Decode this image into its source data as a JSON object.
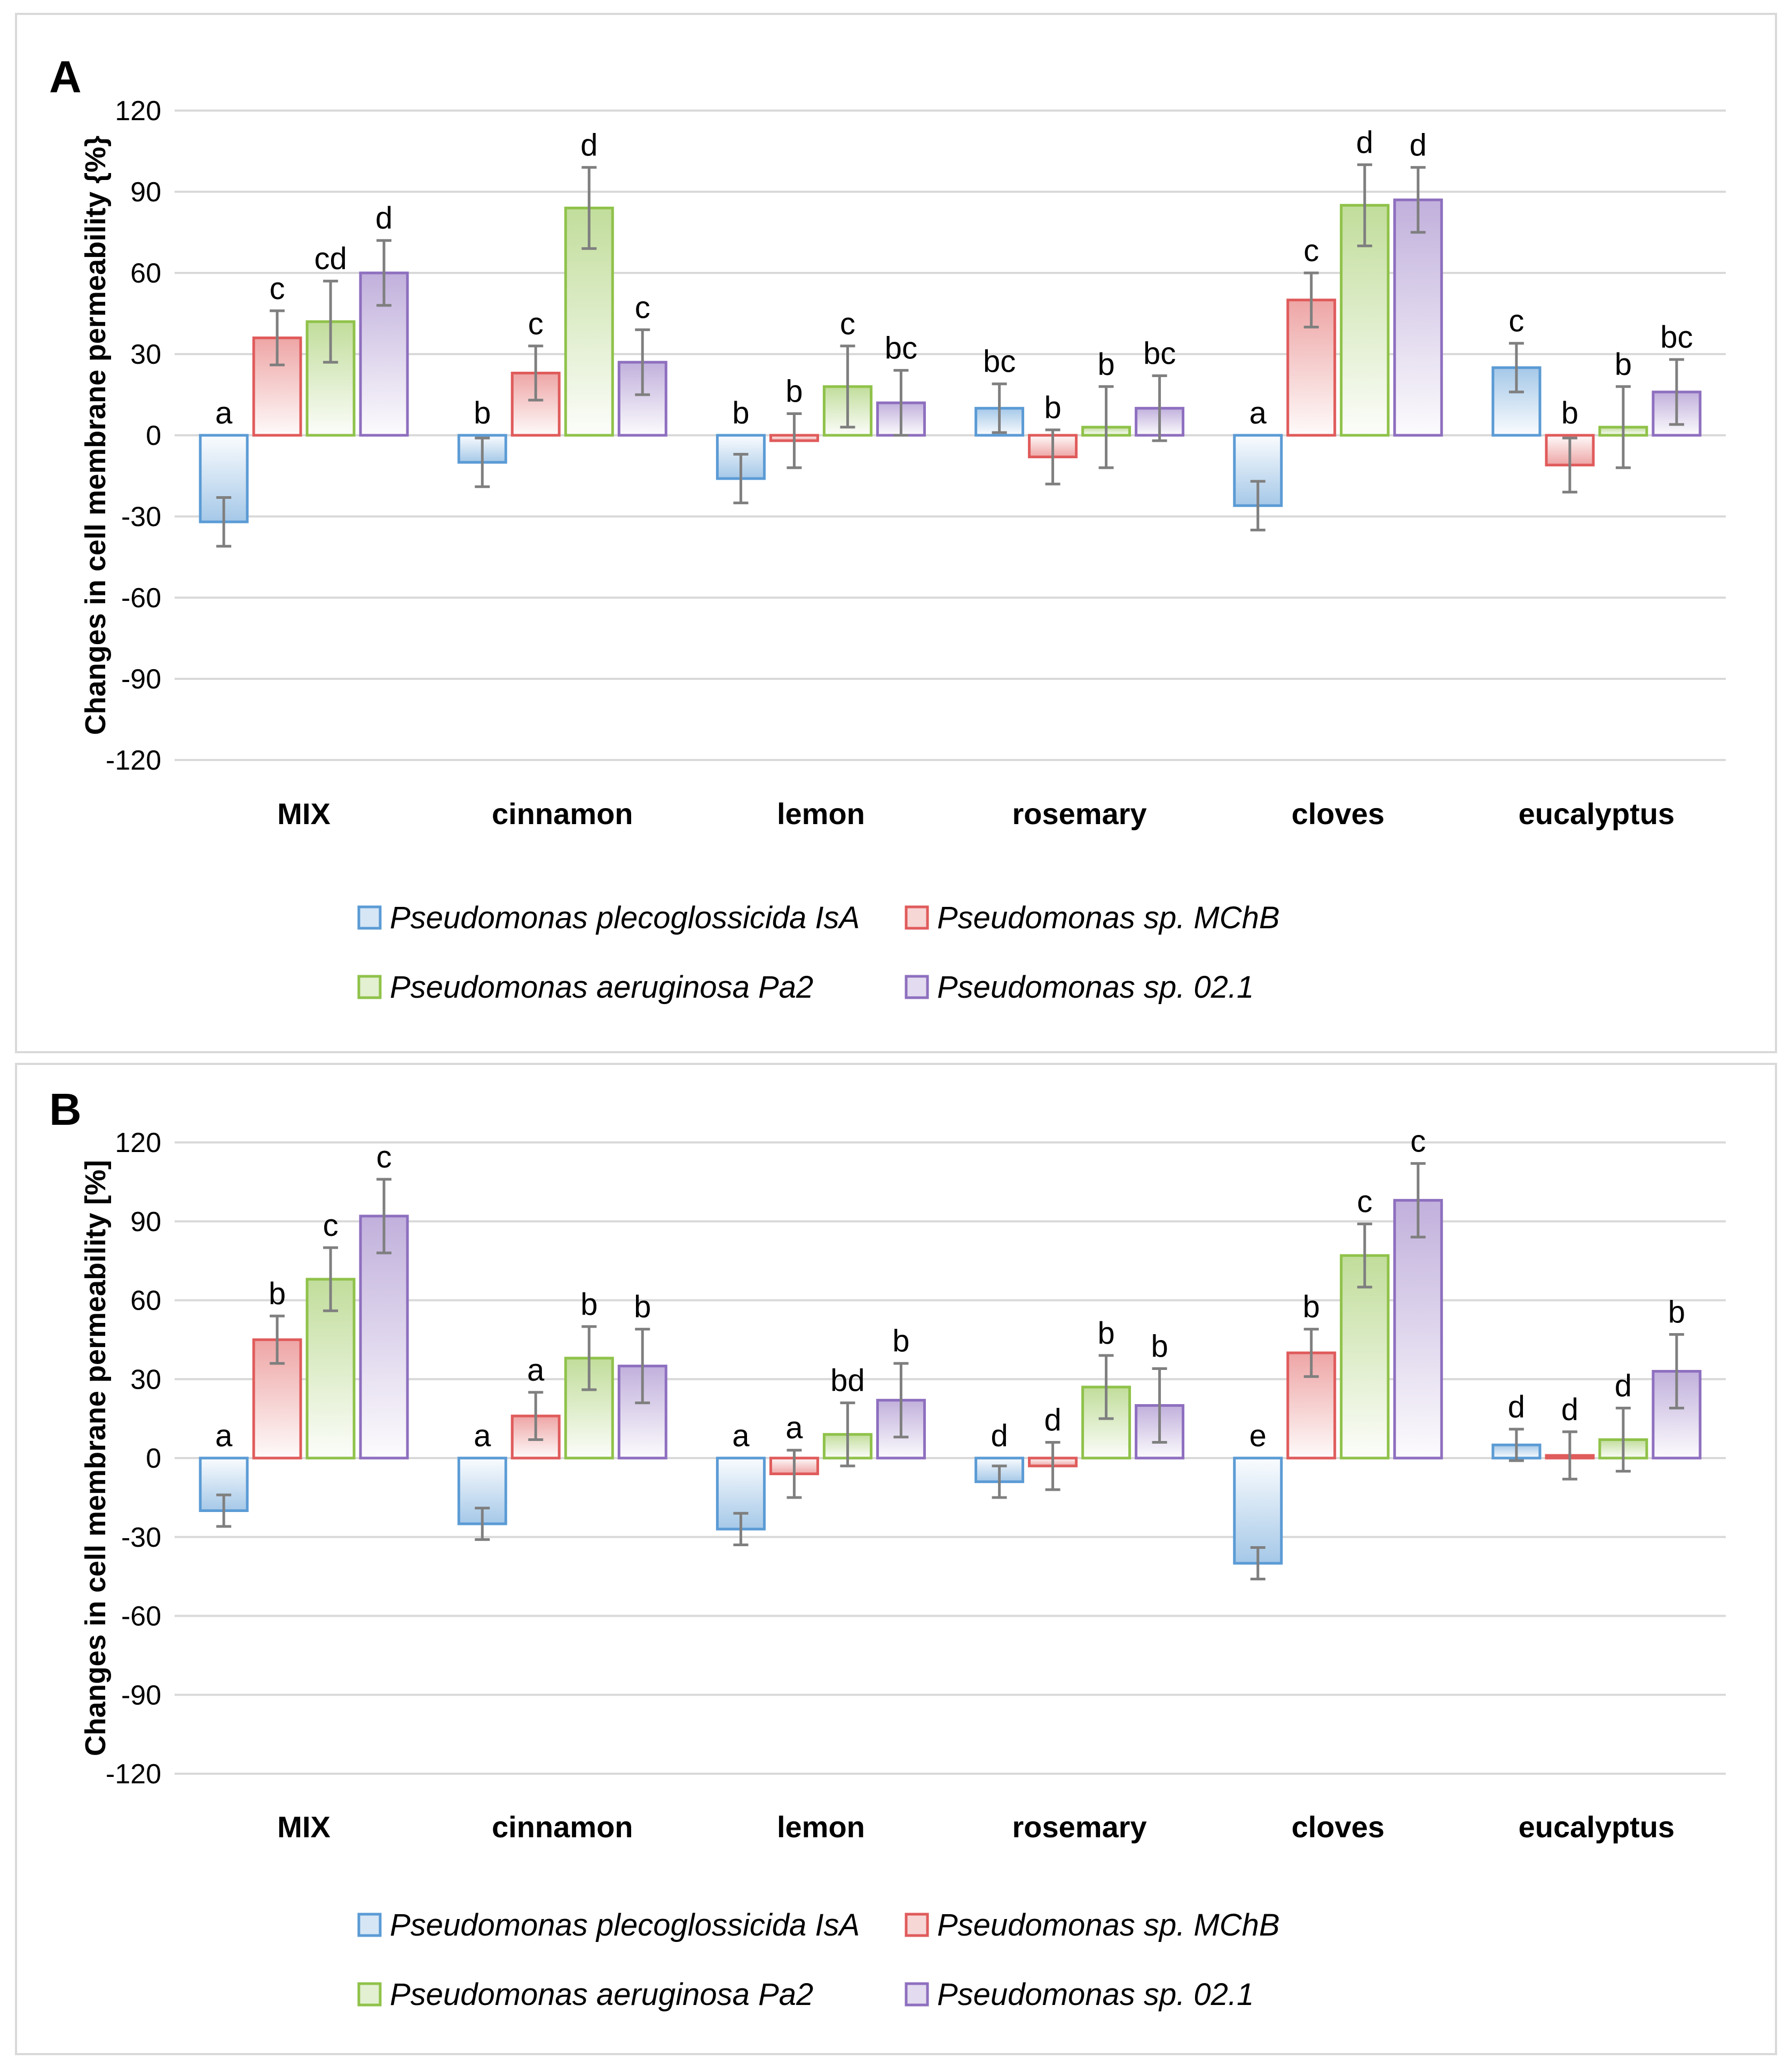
{
  "chart_data": [
    {
      "type": "bar",
      "panel": "A",
      "ylabel": "Changes in cell membrane permeability {%}",
      "ylim": [
        -120,
        120
      ],
      "yticks": [
        120,
        90,
        60,
        30,
        0,
        -30,
        -60,
        -90,
        -120
      ],
      "categories": [
        "MIX",
        "cinnamon",
        "lemon",
        "rosemary",
        "cloves",
        "eucalyptus"
      ],
      "series": [
        {
          "name": "Pseudomonas plecoglossicida IsA",
          "color": "#5b9bd5",
          "values": [
            -32,
            -10,
            -16,
            10,
            -26,
            25
          ],
          "errors": [
            9,
            9,
            9,
            9,
            9,
            9
          ],
          "letters": [
            "a",
            "b",
            "b",
            "bc",
            "a",
            "c"
          ]
        },
        {
          "name": "Pseudomonas sp. MChB",
          "color": "#e05b5b",
          "values": [
            36,
            23,
            -2,
            -8,
            50,
            -11
          ],
          "errors": [
            10,
            10,
            10,
            10,
            10,
            10
          ],
          "letters": [
            "c",
            "c",
            "b",
            "b",
            "c",
            "b"
          ]
        },
        {
          "name": "Pseudomonas aeruginosa Pa2",
          "color": "#8fc24a",
          "values": [
            42,
            84,
            18,
            3,
            85,
            3
          ],
          "errors": [
            15,
            15,
            15,
            15,
            15,
            15
          ],
          "letters": [
            "cd",
            "d",
            "c",
            "b",
            "d",
            "b"
          ]
        },
        {
          "name": "Pseudomonas sp. 02.1",
          "color": "#8e6fbf",
          "values": [
            60,
            27,
            12,
            10,
            87,
            16
          ],
          "errors": [
            12,
            12,
            12,
            12,
            12,
            12
          ],
          "letters": [
            "d",
            "c",
            "bc",
            "bc",
            "d",
            "bc"
          ]
        }
      ]
    },
    {
      "type": "bar",
      "panel": "B",
      "ylabel": "Changes in cell membrane permeability [%]",
      "ylim": [
        -120,
        120
      ],
      "yticks": [
        120,
        90,
        60,
        30,
        0,
        -30,
        -60,
        -90,
        -120
      ],
      "categories": [
        "MIX",
        "cinnamon",
        "lemon",
        "rosemary",
        "cloves",
        "eucalyptus"
      ],
      "series": [
        {
          "name": "Pseudomonas plecoglossicida IsA",
          "color": "#5b9bd5",
          "values": [
            -20,
            -25,
            -27,
            -9,
            -40,
            5
          ],
          "errors": [
            6,
            6,
            6,
            6,
            6,
            6
          ],
          "letters": [
            "a",
            "a",
            "a",
            "d",
            "e",
            "d"
          ]
        },
        {
          "name": "Pseudomonas sp. MChB",
          "color": "#e05b5b",
          "values": [
            45,
            16,
            -6,
            -3,
            40,
            1
          ],
          "errors": [
            9,
            9,
            9,
            9,
            9,
            9
          ],
          "letters": [
            "b",
            "a",
            "a",
            "d",
            "b",
            "d"
          ]
        },
        {
          "name": "Pseudomonas aeruginosa Pa2",
          "color": "#8fc24a",
          "values": [
            68,
            38,
            9,
            27,
            77,
            7
          ],
          "errors": [
            12,
            12,
            12,
            12,
            12,
            12
          ],
          "letters": [
            "c",
            "b",
            "bd",
            "b",
            "c",
            "d"
          ]
        },
        {
          "name": "Pseudomonas sp. 02.1",
          "color": "#8e6fbf",
          "values": [
            92,
            35,
            22,
            20,
            98,
            33
          ],
          "errors": [
            14,
            14,
            14,
            14,
            14,
            14
          ],
          "letters": [
            "c",
            "b",
            "b",
            "b",
            "c",
            "b"
          ]
        }
      ]
    }
  ]
}
